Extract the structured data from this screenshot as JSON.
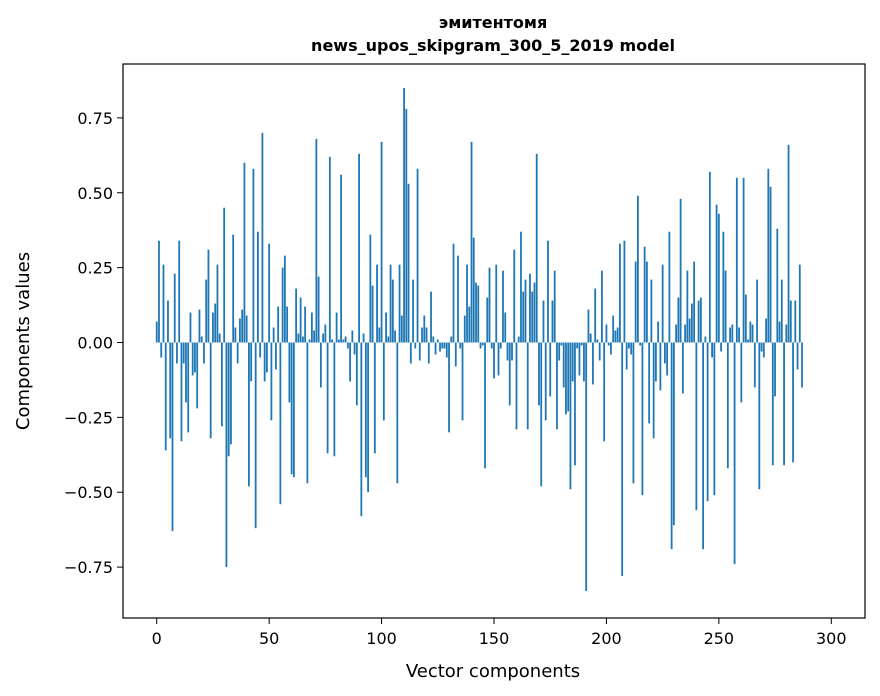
{
  "chart_data": {
    "type": "bar",
    "title_line1": "эмитентомя",
    "title_line2": "news_upos_skipgram_300_5_2019 model",
    "xlabel": "Vector components",
    "ylabel": "Components values",
    "xlim": [
      -15,
      315
    ],
    "ylim": [
      -0.92,
      0.93
    ],
    "xticks": [
      0,
      50,
      100,
      150,
      200,
      250,
      300
    ],
    "xtick_labels": [
      "0",
      "50",
      "100",
      "150",
      "200",
      "250",
      "300"
    ],
    "yticks": [
      -0.75,
      -0.5,
      -0.25,
      0.0,
      0.25,
      0.5,
      0.75
    ],
    "ytick_labels": [
      "−0.75",
      "−0.50",
      "−0.25",
      "0.00",
      "0.25",
      "0.50",
      "0.75"
    ],
    "bar_color": "#1f77b4",
    "values": [
      0.07,
      0.34,
      -0.05,
      0.26,
      -0.36,
      0.14,
      -0.32,
      -0.63,
      0.23,
      -0.07,
      0.34,
      -0.33,
      -0.07,
      -0.2,
      -0.3,
      0.1,
      -0.11,
      -0.1,
      -0.22,
      0.11,
      0.02,
      -0.07,
      0.21,
      0.31,
      -0.32,
      0.1,
      0.13,
      0.26,
      0.03,
      -0.28,
      0.45,
      -0.75,
      -0.38,
      -0.34,
      0.36,
      0.05,
      -0.07,
      0.08,
      0.11,
      0.6,
      0.09,
      -0.48,
      -0.13,
      0.58,
      -0.62,
      0.37,
      -0.05,
      0.7,
      -0.13,
      -0.1,
      0.33,
      -0.26,
      0.05,
      -0.09,
      0.12,
      -0.54,
      0.25,
      0.29,
      0.12,
      -0.2,
      -0.44,
      -0.45,
      0.18,
      0.03,
      0.15,
      0.02,
      0.12,
      -0.47,
      0.01,
      0.1,
      0.04,
      0.68,
      0.22,
      -0.15,
      0.03,
      0.06,
      -0.37,
      0.62,
      0.01,
      -0.38,
      0.1,
      0.01,
      0.56,
      0.01,
      0.02,
      -0.02,
      -0.13,
      0.04,
      -0.04,
      -0.21,
      0.63,
      -0.58,
      0.03,
      -0.45,
      -0.5,
      0.36,
      0.19,
      -0.37,
      0.26,
      0.05,
      0.67,
      -0.26,
      0.1,
      0.02,
      0.26,
      0.21,
      0.04,
      -0.47,
      0.26,
      0.09,
      0.85,
      0.78,
      0.53,
      -0.07,
      0.21,
      -0.02,
      0.58,
      -0.06,
      0.05,
      0.09,
      0.05,
      -0.07,
      0.17,
      0.02,
      -0.04,
      0.01,
      -0.03,
      -0.02,
      -0.02,
      -0.05,
      -0.3,
      0.02,
      0.33,
      -0.08,
      0.29,
      -0.02,
      -0.26,
      0.09,
      0.26,
      0.12,
      0.67,
      0.35,
      0.2,
      0.19,
      -0.02,
      -0.01,
      -0.42,
      0.15,
      0.25,
      -0.02,
      -0.12,
      0.26,
      -0.11,
      -0.02,
      0.24,
      0.1,
      -0.06,
      -0.21,
      -0.06,
      0.31,
      -0.29,
      0.02,
      0.37,
      0.17,
      0.21,
      -0.29,
      0.23,
      0.17,
      0.2,
      0.63,
      -0.21,
      -0.48,
      0.14,
      -0.26,
      0.34,
      -0.18,
      0.14,
      0.24,
      -0.29,
      -0.06,
      -0.01,
      -0.15,
      -0.24,
      -0.23,
      -0.49,
      -0.13,
      -0.41,
      -0.02,
      -0.11,
      -0.01,
      -0.13,
      -0.83,
      0.11,
      0.03,
      -0.14,
      0.18,
      0.01,
      -0.06,
      0.24,
      -0.33,
      0.06,
      -0.01,
      -0.04,
      0.09,
      0.04,
      0.05,
      0.33,
      -0.78,
      0.34,
      -0.09,
      -0.02,
      -0.04,
      -0.47,
      0.27,
      0.49,
      -0.01,
      -0.51,
      0.32,
      0.27,
      -0.27,
      0.21,
      -0.32,
      -0.13,
      0.07,
      -0.16,
      0.26,
      -0.07,
      -0.11,
      0.37,
      -0.69,
      -0.61,
      0.06,
      0.15,
      0.48,
      -0.17,
      0.06,
      0.24,
      0.08,
      0.13,
      0.27,
      -0.56,
      0.14,
      0.15,
      -0.69,
      0.02,
      -0.53,
      0.57,
      -0.05,
      -0.51,
      0.46,
      0.43,
      -0.03,
      0.37,
      0.24,
      -0.42,
      0.05,
      0.06,
      -0.74,
      0.55,
      0.05,
      -0.2,
      0.55,
      0.16,
      0.01,
      0.07,
      0.06,
      -0.15,
      0.21,
      -0.49,
      -0.03,
      -0.05,
      0.08,
      0.58,
      0.52,
      -0.41,
      -0.18,
      0.38,
      0.07,
      0.21,
      -0.41,
      0.06,
      0.66,
      0.14,
      -0.4,
      0.14,
      -0.09,
      0.26,
      -0.15
    ]
  }
}
